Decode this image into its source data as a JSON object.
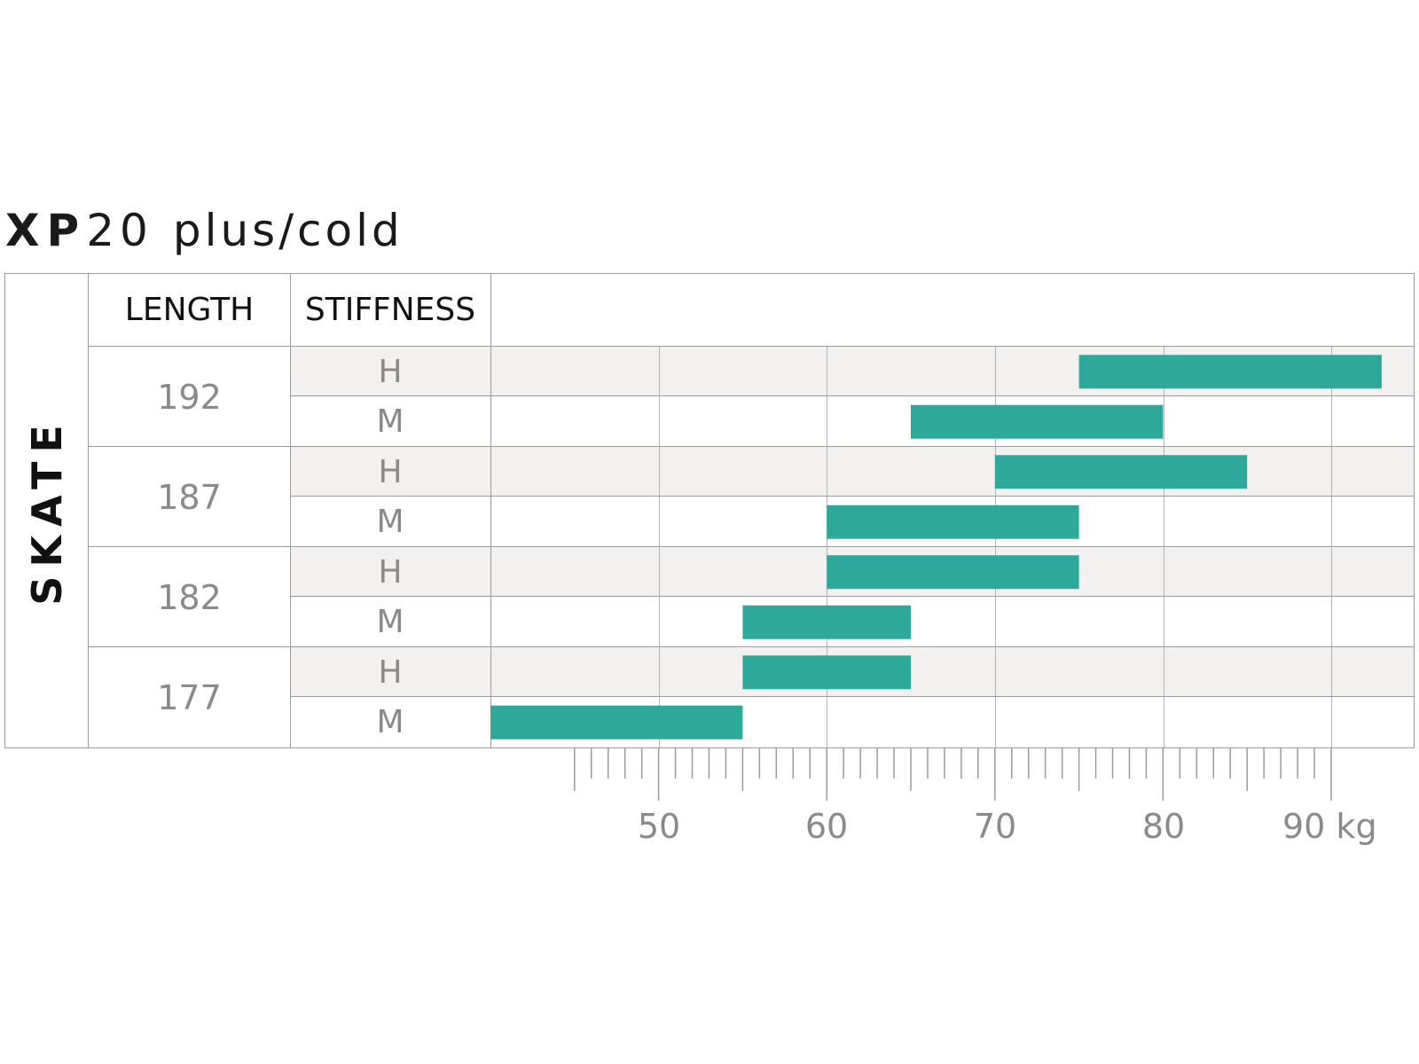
{
  "title": {
    "model": "XP",
    "number": "20",
    "subtitle": "plus/cold"
  },
  "colors": {
    "bar": "#2ea89b",
    "band": "#f2f1f0",
    "grid": "#b4b4b4",
    "text_muted": "#8a8a8a"
  },
  "table": {
    "side_label": "SKATE",
    "col_length": "LENGTH",
    "col_stiffness": "STIFFNESS",
    "lengths": [
      "192",
      "187",
      "182",
      "177"
    ]
  },
  "chart_data": {
    "type": "bar",
    "orientation": "horizontal-range",
    "x_unit": "kg",
    "xlim": [
      40,
      95
    ],
    "x_ticks": [
      "50",
      "60",
      "70",
      "80",
      "90 kg"
    ],
    "grid": true,
    "rows": [
      {
        "length": "192",
        "stiffness": "H",
        "min": 75,
        "max": 93
      },
      {
        "length": "192",
        "stiffness": "M",
        "min": 65,
        "max": 80
      },
      {
        "length": "187",
        "stiffness": "H",
        "min": 70,
        "max": 85
      },
      {
        "length": "187",
        "stiffness": "M",
        "min": 60,
        "max": 75
      },
      {
        "length": "182",
        "stiffness": "H",
        "min": 60,
        "max": 75
      },
      {
        "length": "182",
        "stiffness": "M",
        "min": 55,
        "max": 65
      },
      {
        "length": "177",
        "stiffness": "H",
        "min": 55,
        "max": 65
      },
      {
        "length": "177",
        "stiffness": "M",
        "min": 40,
        "max": 55
      }
    ]
  }
}
